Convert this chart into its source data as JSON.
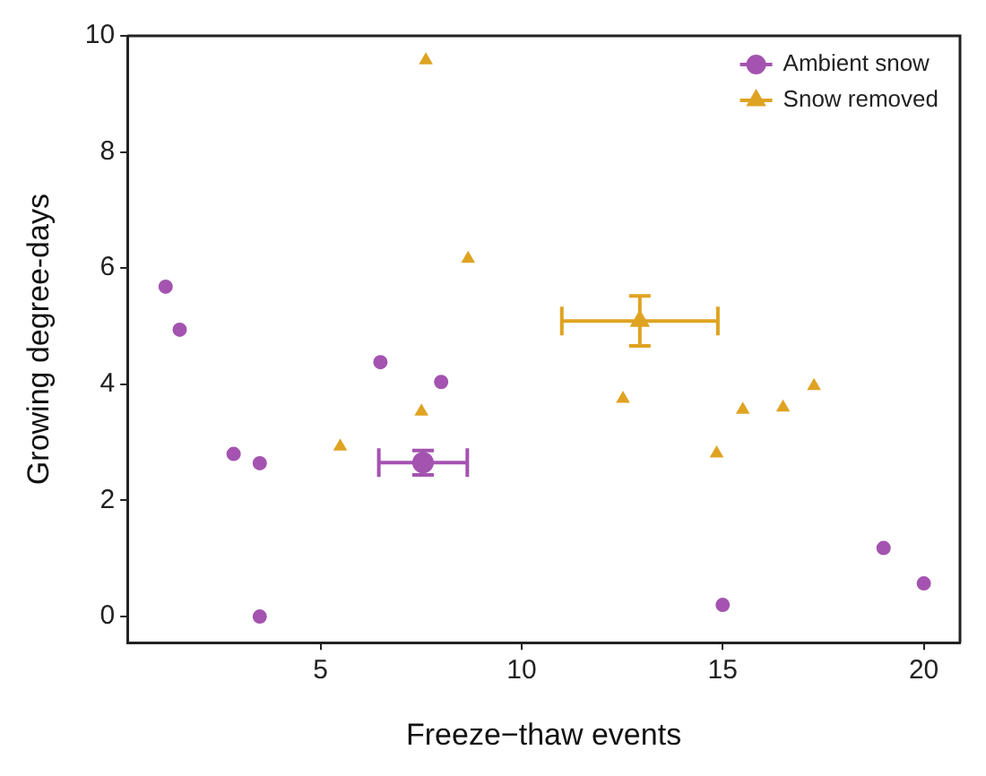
{
  "chart_data": {
    "type": "scatter",
    "xlabel": "Freeze−thaw events",
    "ylabel": "Growing degree-days",
    "xlim": [
      0.2,
      20.9
    ],
    "ylim": [
      -0.45,
      10
    ],
    "xticks": [
      5,
      10,
      15,
      20
    ],
    "yticks": [
      0,
      2,
      4,
      6,
      8,
      10
    ],
    "legend": "top right",
    "series": [
      {
        "color": "#a453b0",
        "marker": "circle",
        "x": [
          1.15,
          1.5,
          2.84,
          3.49,
          3.49,
          6.49,
          8.0,
          15.0,
          19.0,
          20.0
        ],
        "values": [
          5.68,
          4.94,
          2.8,
          2.64,
          0,
          4.38,
          4.04,
          0.2,
          1.18,
          0.57
        ]
      },
      {
        "color": "#dfa322",
        "marker": "triangle",
        "x": [
          5.49,
          7.51,
          7.62,
          8.67,
          12.52,
          14.85,
          15.5,
          16.5,
          17.27
        ],
        "values": [
          2.93,
          3.53,
          9.58,
          6.16,
          3.75,
          2.81,
          3.56,
          3.6,
          3.97
        ]
      },
      {
        "name": "Ambient snow",
        "color": "#a453b0",
        "marker": "circle",
        "x": [
          7.55
        ],
        "values": [
          2.65
        ],
        "errors": [
          0.21
        ],
        "xerrors": [
          1.1
        ]
      },
      {
        "name": "Snow removed",
        "color": "#dfa322",
        "marker": "triangle",
        "x": [
          12.94
        ],
        "values": [
          5.09
        ],
        "errors": [
          0.43
        ],
        "xerrors": [
          1.94
        ]
      }
    ]
  }
}
